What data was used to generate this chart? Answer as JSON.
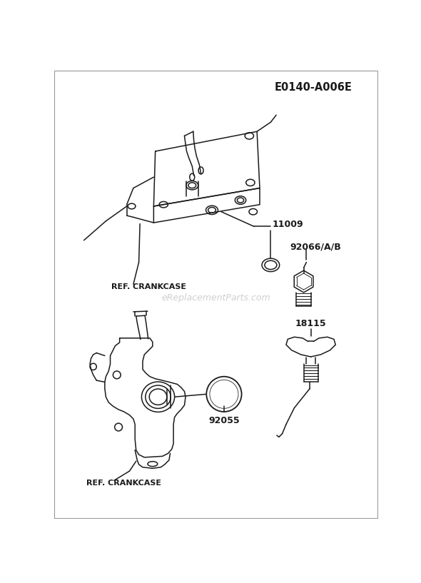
{
  "title_code": "E0140-A006E",
  "watermark": "eReplacementParts.com",
  "bg_color": "#ffffff",
  "line_color": "#1a1a1a",
  "label_11009": "11009",
  "label_92066": "92066/A/B",
  "label_92055": "92055",
  "label_18115": "18115",
  "label_ref_crankcase_top": "REF. CRANKCASE",
  "label_ref_crankcase_bot": "REF. CRANKCASE",
  "figsize": [
    5.9,
    8.17
  ],
  "dpi": 100
}
